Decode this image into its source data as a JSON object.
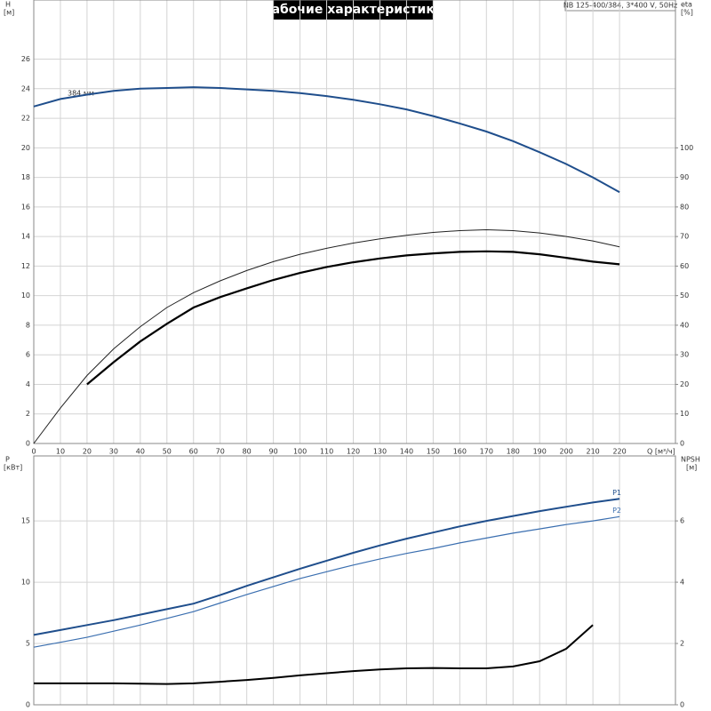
{
  "chart_data": [
    {
      "type": "line",
      "title": "Рабочие характеристики",
      "model": "NB 125-400/384, 3*400 V, 50Hz",
      "ylabel": "H",
      "yunit": "[м]",
      "y2label": "eta",
      "y2unit": "[%]",
      "xlabel": "Q [м³/ч]",
      "x": [
        0,
        10,
        20,
        30,
        40,
        50,
        60,
        70,
        80,
        90,
        100,
        110,
        120,
        130,
        140,
        150,
        160,
        170,
        180,
        190,
        200,
        210,
        220
      ],
      "xlim": [
        0,
        241
      ],
      "xticks": [
        0,
        10,
        20,
        30,
        40,
        50,
        60,
        70,
        80,
        90,
        100,
        110,
        120,
        130,
        140,
        150,
        160,
        170,
        180,
        190,
        200,
        210,
        220
      ],
      "ylim": [
        0,
        30
      ],
      "yticks": [
        0,
        2,
        4,
        6,
        8,
        10,
        12,
        14,
        16,
        18,
        20,
        22,
        24,
        26
      ],
      "y2lim": [
        0,
        150
      ],
      "y2ticks": [
        0,
        10,
        20,
        30,
        40,
        50,
        60,
        70,
        80,
        90,
        100
      ],
      "grid": true,
      "annotation": "384 мм",
      "series": [
        {
          "color": "#1f4e8c",
          "width": 2,
          "values": [
            22.8,
            23.3,
            23.6,
            23.85,
            24.0,
            24.05,
            24.1,
            24.05,
            23.95,
            23.85,
            23.7,
            23.5,
            23.25,
            22.95,
            22.6,
            22.15,
            21.65,
            21.1,
            20.45,
            19.7,
            18.9,
            18.0,
            17.0
          ]
        },
        {
          "color": "#222222",
          "width": 1,
          "axis": "y2",
          "values": [
            0,
            12,
            23,
            32,
            39.5,
            46,
            51,
            55,
            58.5,
            61.5,
            64,
            66,
            67.8,
            69.2,
            70.4,
            71.4,
            72,
            72.3,
            72,
            71.2,
            70,
            68.5,
            66.5
          ]
        },
        {
          "color": "#000000",
          "width": 2.2,
          "axis": "y2",
          "values": [
            null,
            null,
            20,
            27.5,
            34.5,
            40.5,
            46,
            49.5,
            52.5,
            55.3,
            57.7,
            59.7,
            61.3,
            62.6,
            63.6,
            64.3,
            64.8,
            65,
            64.8,
            64,
            62.8,
            61.5,
            60.6
          ]
        }
      ]
    },
    {
      "type": "line",
      "ylabel": "P",
      "yunit": "[кВт]",
      "y2label": "NPSH",
      "y2unit": "[м]",
      "x": [
        0,
        10,
        20,
        30,
        40,
        50,
        60,
        70,
        80,
        90,
        100,
        110,
        120,
        130,
        140,
        150,
        160,
        170,
        180,
        190,
        200,
        210,
        220
      ],
      "ylim": [
        0,
        20.3
      ],
      "yticks": [
        0,
        5,
        10,
        15
      ],
      "y2lim": [
        0,
        8.12
      ],
      "y2ticks": [
        0,
        2,
        4,
        6
      ],
      "grid": true,
      "series": [
        {
          "name": "P1",
          "color": "#1f4e8c",
          "width": 2,
          "values": [
            5.7,
            6.1,
            6.5,
            6.9,
            7.35,
            7.8,
            8.25,
            8.95,
            9.7,
            10.4,
            11.1,
            11.75,
            12.4,
            13.0,
            13.55,
            14.05,
            14.55,
            15.0,
            15.4,
            15.8,
            16.15,
            16.5,
            16.8
          ]
        },
        {
          "name": "P2",
          "color": "#3b6fb0",
          "width": 1.2,
          "values": [
            4.7,
            5.1,
            5.5,
            6.0,
            6.5,
            7.05,
            7.6,
            8.3,
            9.0,
            9.65,
            10.3,
            10.85,
            11.4,
            11.9,
            12.35,
            12.75,
            13.2,
            13.6,
            14.0,
            14.35,
            14.7,
            15.0,
            15.35
          ]
        },
        {
          "color": "#000000",
          "width": 2,
          "axis": "y2",
          "values": [
            0.7,
            0.7,
            0.7,
            0.7,
            0.69,
            0.68,
            0.7,
            0.75,
            0.81,
            0.88,
            0.96,
            1.03,
            1.1,
            1.15,
            1.19,
            1.2,
            1.19,
            1.19,
            1.25,
            1.42,
            1.83,
            2.6,
            null
          ]
        }
      ]
    }
  ]
}
